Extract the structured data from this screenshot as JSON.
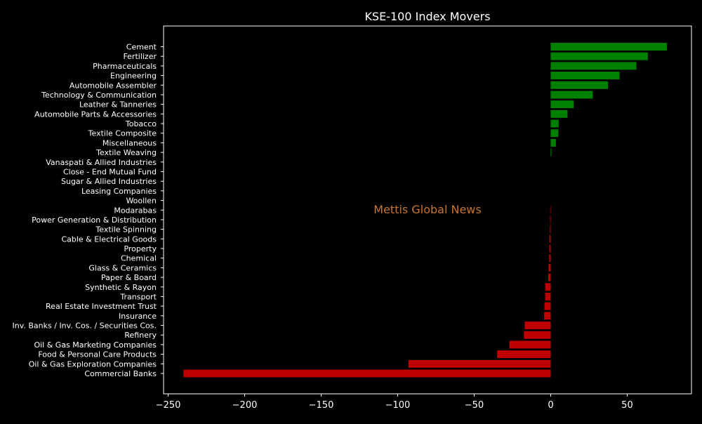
{
  "chart_data": {
    "type": "bar",
    "orientation": "horizontal",
    "title": "KSE-100 Index Movers",
    "xlabel": "",
    "ylabel": "",
    "xlim": [
      -253,
      92
    ],
    "xticks": [
      -250,
      -200,
      -150,
      -100,
      -50,
      0,
      50
    ],
    "xtick_labels": [
      "−250",
      "−200",
      "−150",
      "−100",
      "−50",
      "0",
      "50"
    ],
    "grid": false,
    "watermark": "Mettis Global News",
    "colors": {
      "positive": "#008000",
      "negative": "#bf0000",
      "background": "#000000",
      "text": "#ffffff",
      "watermark": "#c8742f"
    },
    "categories": [
      "Cement",
      "Fertilizer",
      "Pharmaceuticals",
      "Engineering",
      "Automobile Assembler",
      "Technology & Communication",
      "Leather & Tanneries",
      "Automobile Parts & Accessories",
      "Tobacco",
      "Textile Composite",
      "Miscellaneous",
      "Textile Weaving",
      "Vanaspati & Allied Industries",
      "Close - End Mutual Fund",
      "Sugar & Allied Industries",
      "Leasing Companies",
      "Woollen",
      "Modarabas",
      "Power Generation & Distribution",
      "Textile Spinning",
      "Cable & Electrical Goods",
      "Property",
      "Chemical",
      "Glass & Ceramics",
      "Paper & Board",
      "Synthetic & Rayon",
      "Transport",
      "Real Estate Investment Trust",
      "Insurance",
      "Inv. Banks / Inv. Cos. / Securities Cos.",
      "Refinery",
      "Oil & Gas Marketing Companies",
      "Food & Personal Care Products",
      "Oil & Gas Exploration Companies",
      "Commercial Banks"
    ],
    "values": [
      76,
      63.5,
      56,
      45,
      37.5,
      27.5,
      15,
      11,
      5.2,
      5,
      3.4,
      0.5,
      0,
      0,
      0,
      0,
      0,
      -0.3,
      -0.4,
      -0.5,
      -0.8,
      -0.9,
      -1,
      -1.4,
      -1.6,
      -3.6,
      -3.6,
      -4.1,
      -4.3,
      -17,
      -17.5,
      -27,
      -35,
      -93,
      -240
    ]
  }
}
